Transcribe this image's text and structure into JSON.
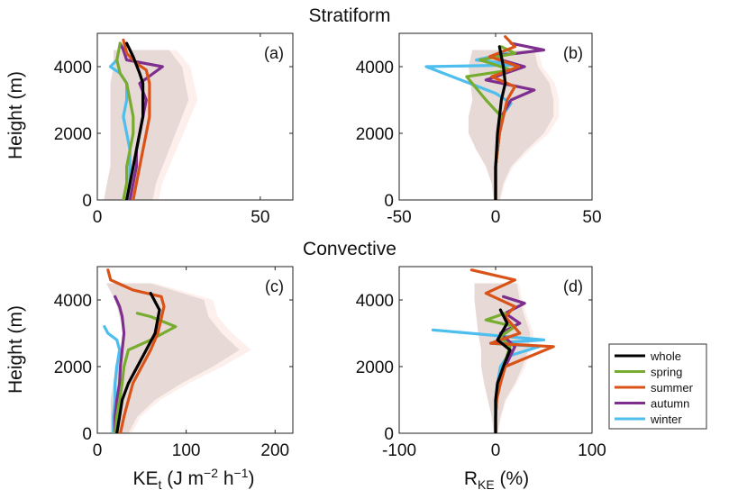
{
  "figure": {
    "section_titles": [
      "Stratiform",
      "Convective"
    ],
    "ylabel": "Height (m)",
    "xlabel_left": {
      "base": "KE",
      "sub": "t",
      "rest": " (J m",
      "sup1": "−2",
      "mid": " h",
      "sup2": "−1",
      "end": ")"
    },
    "xlabel_right": {
      "base": "R",
      "sub": "KE",
      "rest": " (%)"
    }
  },
  "legend": {
    "position": "right",
    "entries": [
      {
        "name": "whole",
        "color": "#000000"
      },
      {
        "name": "spring",
        "color": "#77ac30"
      },
      {
        "name": "summer",
        "color": "#d95319"
      },
      {
        "name": "autumn",
        "color": "#7e2f8e"
      },
      {
        "name": "winter",
        "color": "#4dbeee"
      }
    ]
  },
  "chart_data": [
    {
      "type": "line",
      "panel_label": "(a)",
      "section": "Stratiform",
      "xlim": [
        0,
        60
      ],
      "ylim": [
        0,
        5000
      ],
      "xticks": [
        0,
        50
      ],
      "xtick_labels": [
        "0",
        "50"
      ],
      "yticks": [
        0,
        2000,
        4000
      ],
      "ytick_labels": [
        "0",
        "2000",
        "4000"
      ],
      "series": [
        {
          "name": "whole",
          "x": [
            9,
            10,
            11,
            12,
            13,
            14,
            14,
            14,
            13,
            11,
            9
          ],
          "y": [
            0,
            500,
            1000,
            1500,
            2000,
            2500,
            3000,
            3500,
            3800,
            4300,
            4700
          ]
        },
        {
          "name": "spring",
          "x": [
            8,
            9,
            9,
            10,
            11,
            11,
            10,
            9,
            7,
            6,
            7
          ],
          "y": [
            0,
            500,
            1000,
            1500,
            2000,
            2500,
            3000,
            3500,
            3800,
            4200,
            4700
          ]
        },
        {
          "name": "summer",
          "x": [
            11,
            12,
            13,
            14,
            15,
            16,
            16,
            16,
            15,
            12,
            9,
            8
          ],
          "y": [
            0,
            500,
            1000,
            1500,
            2000,
            2500,
            3000,
            3500,
            3900,
            4100,
            4400,
            4800
          ]
        },
        {
          "name": "autumn",
          "x": [
            10,
            11,
            12,
            12,
            13,
            14,
            15,
            13,
            20,
            9,
            8,
            7
          ],
          "y": [
            0,
            500,
            1000,
            1500,
            2000,
            2500,
            3000,
            3500,
            4000,
            4200,
            4500,
            4700
          ]
        },
        {
          "name": "winter",
          "x": [
            9,
            10,
            10,
            10,
            9,
            8,
            9,
            9,
            7,
            4,
            6
          ],
          "y": [
            0,
            500,
            1000,
            1500,
            2000,
            2500,
            3000,
            3500,
            3800,
            4000,
            4200
          ]
        }
      ],
      "uncertainty_band": {
        "x_low": [
          2,
          3,
          4,
          4,
          4,
          4,
          4,
          4,
          5,
          5
        ],
        "x_high": [
          17,
          18,
          20,
          22,
          24,
          26,
          28,
          27,
          26,
          22
        ],
        "y": [
          0,
          500,
          1000,
          1500,
          2000,
          2500,
          3000,
          3500,
          4000,
          4500
        ]
      }
    },
    {
      "type": "line",
      "panel_label": "(b)",
      "section": "Stratiform",
      "xlim": [
        -50,
        50
      ],
      "ylim": [
        0,
        5000
      ],
      "xticks": [
        -50,
        0,
        50
      ],
      "xtick_labels": [
        "-50",
        "0",
        "50"
      ],
      "yticks": [
        0,
        2000,
        4000
      ],
      "ytick_labels": [
        "0",
        "2000",
        "4000"
      ],
      "series": [
        {
          "name": "whole",
          "x": [
            0,
            0,
            0,
            0.5,
            1,
            2,
            3,
            5,
            4,
            2
          ],
          "y": [
            0,
            500,
            1000,
            1500,
            2000,
            2500,
            3000,
            3500,
            4000,
            4600
          ]
        },
        {
          "name": "spring",
          "x": [
            0,
            0,
            0,
            1,
            2,
            3,
            -5,
            -15,
            8,
            -8,
            10,
            3
          ],
          "y": [
            0,
            500,
            1000,
            1500,
            2000,
            2500,
            3000,
            3700,
            3900,
            4200,
            4400,
            4600
          ]
        },
        {
          "name": "summer",
          "x": [
            0,
            0,
            0,
            1,
            2,
            4,
            6,
            10,
            -2,
            12,
            -3,
            10,
            5
          ],
          "y": [
            0,
            500,
            1000,
            1500,
            2000,
            2500,
            3000,
            3400,
            3700,
            4000,
            4300,
            4600,
            4900
          ]
        },
        {
          "name": "autumn",
          "x": [
            0,
            0,
            0,
            1,
            2,
            3,
            8,
            20,
            -5,
            15,
            -3,
            25,
            8
          ],
          "y": [
            0,
            500,
            1000,
            1500,
            2000,
            2500,
            3000,
            3300,
            3600,
            4000,
            4300,
            4500,
            4700
          ]
        },
        {
          "name": "winter",
          "x": [
            0,
            0,
            0,
            1,
            2,
            3,
            8,
            0,
            -36,
            12,
            -10,
            6
          ],
          "y": [
            0,
            500,
            1000,
            1500,
            2000,
            2500,
            2900,
            3200,
            4000,
            4050,
            4200,
            4400
          ]
        }
      ],
      "uncertainty_band": {
        "x_low": [
          -1,
          -2,
          -5,
          -10,
          -14,
          -14,
          -12,
          -13,
          -14,
          -12
        ],
        "x_high": [
          2,
          4,
          8,
          16,
          25,
          30,
          30,
          28,
          22,
          20
        ],
        "y": [
          0,
          500,
          1000,
          1500,
          2000,
          2500,
          3000,
          3500,
          4000,
          4500
        ]
      }
    },
    {
      "type": "line",
      "panel_label": "(c)",
      "section": "Convective",
      "xlim": [
        0,
        220
      ],
      "ylim": [
        0,
        5000
      ],
      "xticks": [
        0,
        100,
        200
      ],
      "xtick_labels": [
        "0",
        "100",
        "200"
      ],
      "yticks": [
        0,
        2000,
        4000
      ],
      "ytick_labels": [
        "0",
        "2000",
        "4000"
      ],
      "series": [
        {
          "name": "whole",
          "x": [
            22,
            25,
            28,
            35,
            45,
            55,
            65,
            70,
            60
          ],
          "y": [
            0,
            500,
            1000,
            1500,
            2000,
            2500,
            3000,
            3700,
            4200
          ]
        },
        {
          "name": "spring",
          "x": [
            20,
            22,
            25,
            28,
            30,
            35,
            60,
            88,
            60,
            45
          ],
          "y": [
            0,
            500,
            1000,
            1500,
            2000,
            2500,
            2800,
            3200,
            3500,
            3600
          ]
        },
        {
          "name": "summer",
          "x": [
            26,
            30,
            35,
            40,
            50,
            60,
            68,
            75,
            72,
            40,
            15,
            12
          ],
          "y": [
            0,
            500,
            1000,
            1500,
            2000,
            2500,
            3000,
            3800,
            4100,
            4300,
            4600,
            4900
          ]
        },
        {
          "name": "autumn",
          "x": [
            20,
            20,
            22,
            25,
            26,
            28,
            30,
            28,
            25,
            20
          ],
          "y": [
            0,
            500,
            1000,
            1500,
            2000,
            2500,
            3000,
            3500,
            3800,
            4100
          ]
        },
        {
          "name": "winter",
          "x": [
            18,
            18,
            20,
            20,
            22,
            25,
            22,
            12,
            8
          ],
          "y": [
            0,
            500,
            1000,
            1500,
            2000,
            2500,
            2800,
            3000,
            3200
          ]
        }
      ],
      "uncertainty_band": {
        "x_low": [
          15,
          15,
          15,
          18,
          20,
          25,
          30,
          25,
          20,
          10
        ],
        "x_high": [
          35,
          45,
          65,
          95,
          130,
          160,
          140,
          125,
          120,
          60
        ],
        "y": [
          0,
          500,
          1000,
          1500,
          2000,
          2500,
          3000,
          3500,
          4000,
          4500
        ]
      }
    },
    {
      "type": "line",
      "panel_label": "(d)",
      "section": "Convective",
      "xlim": [
        -100,
        100
      ],
      "ylim": [
        0,
        5000
      ],
      "xticks": [
        -100,
        0,
        100
      ],
      "xtick_labels": [
        "-100",
        "0",
        "100"
      ],
      "yticks": [
        0,
        2000,
        4000
      ],
      "ytick_labels": [
        "0",
        "2000",
        "4000"
      ],
      "series": [
        {
          "name": "whole",
          "x": [
            0,
            0,
            0,
            2,
            8,
            15,
            2,
            12,
            5
          ],
          "y": [
            0,
            500,
            1000,
            1500,
            2000,
            2500,
            2800,
            3300,
            3700
          ]
        },
        {
          "name": "spring",
          "x": [
            0,
            0,
            1,
            3,
            8,
            15,
            5,
            20,
            -10,
            10
          ],
          "y": [
            0,
            500,
            1000,
            1500,
            2000,
            2600,
            2900,
            3200,
            3400,
            3600
          ]
        },
        {
          "name": "summer",
          "x": [
            0,
            0,
            1,
            5,
            10,
            60,
            -5,
            25,
            10,
            20,
            -10,
            20,
            -25
          ],
          "y": [
            0,
            500,
            1000,
            1500,
            2000,
            2600,
            2700,
            3000,
            3500,
            3800,
            4200,
            4600,
            4900
          ]
        },
        {
          "name": "autumn",
          "x": [
            0,
            0,
            1,
            3,
            10,
            20,
            5,
            25,
            10,
            30,
            8
          ],
          "y": [
            0,
            500,
            1000,
            1500,
            2000,
            2600,
            3000,
            3300,
            3600,
            3900,
            4100
          ]
        },
        {
          "name": "winter",
          "x": [
            0,
            0,
            0,
            2,
            5,
            12,
            45,
            -5,
            50,
            -65
          ],
          "y": [
            0,
            500,
            1000,
            1500,
            2000,
            2300,
            2600,
            2700,
            2800,
            3100
          ]
        }
      ],
      "uncertainty_band": {
        "x_low": [
          -2,
          -4,
          -8,
          -12,
          -15,
          -15,
          -18,
          -20,
          -22,
          -22
        ],
        "x_high": [
          2,
          5,
          10,
          20,
          28,
          34,
          36,
          30,
          25,
          22
        ],
        "y": [
          0,
          500,
          1000,
          1500,
          2000,
          2500,
          3000,
          3500,
          4000,
          4500
        ]
      }
    }
  ]
}
